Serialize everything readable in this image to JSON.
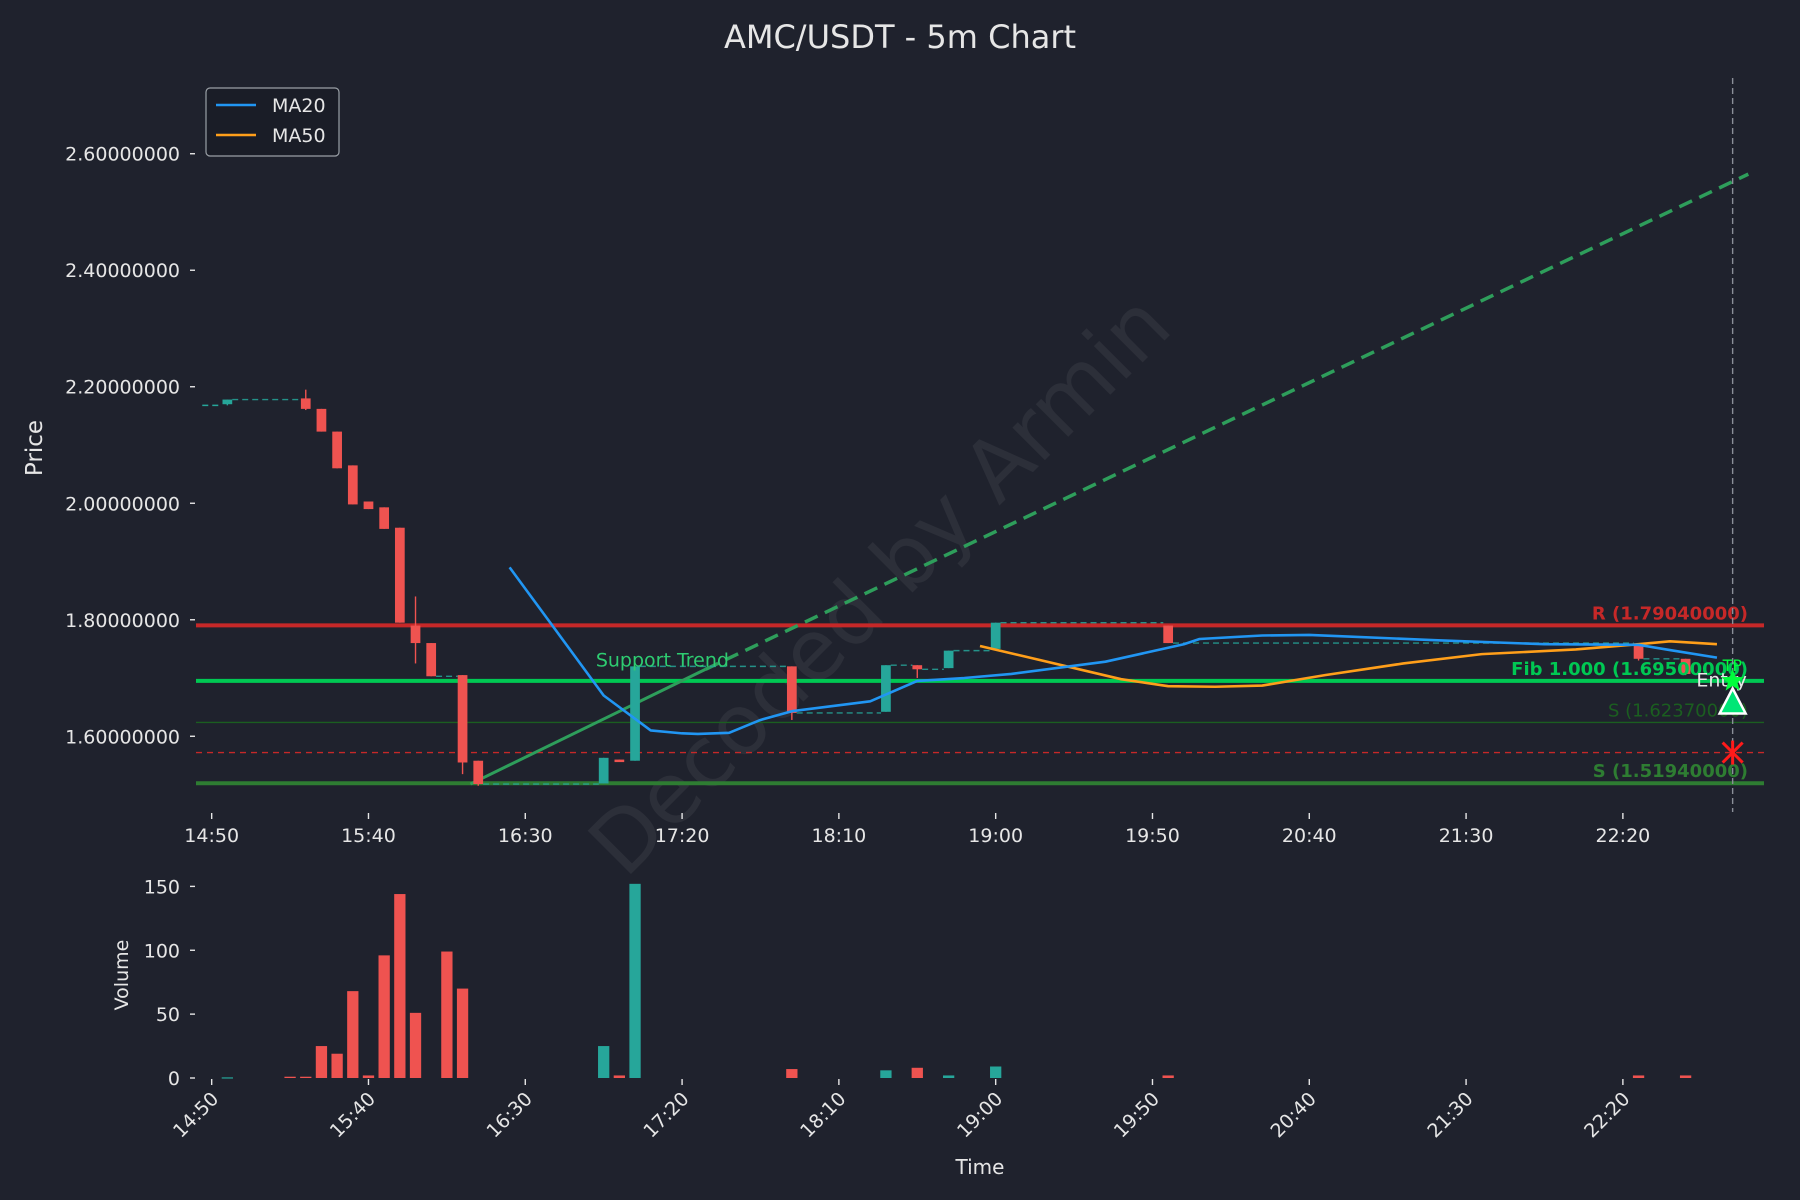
{
  "chart_data": {
    "title": "AMC/USDT - 5m Chart",
    "watermark": "Decoded by Armin",
    "colors": {
      "background": "#1f222d",
      "up": "#26a69a",
      "down": "#ef5350",
      "ma20": "#2196f3",
      "ma50": "#ff9f1a",
      "resistance": "#c62828",
      "support_strong": "#2e7d32",
      "support_weak": "#1b5e20",
      "fib": "#00c853",
      "trend": "#2e9e5b",
      "stop": "#ff1a1a"
    },
    "price_panel": {
      "type": "candlestick",
      "ylabel": "Price",
      "ylim": [
        1.47,
        2.73
      ],
      "yticks": [
        {
          "value": 1.6,
          "label": "1.60000000"
        },
        {
          "value": 1.8,
          "label": "1.80000000"
        },
        {
          "value": 2.0,
          "label": "2.00000000"
        },
        {
          "value": 2.2,
          "label": "2.20000000"
        },
        {
          "value": 2.4,
          "label": "2.40000000"
        },
        {
          "value": 2.6,
          "label": "2.60000000"
        }
      ],
      "legend": {
        "position": "top-left",
        "entries": [
          "MA20",
          "MA50"
        ]
      },
      "candles": [
        {
          "t": 1,
          "o": 2.17,
          "h": 2.178,
          "l": 2.168,
          "c": 2.178
        },
        {
          "t": 6,
          "o": 2.18,
          "h": 2.195,
          "l": 2.16,
          "c": 2.162
        },
        {
          "t": 7,
          "o": 2.162,
          "h": 2.162,
          "l": 2.123,
          "c": 2.123
        },
        {
          "t": 8,
          "o": 2.123,
          "h": 2.123,
          "l": 2.06,
          "c": 2.06
        },
        {
          "t": 9,
          "o": 2.065,
          "h": 2.065,
          "l": 1.998,
          "c": 1.998
        },
        {
          "t": 10,
          "o": 2.003,
          "h": 2.003,
          "l": 1.99,
          "c": 1.99
        },
        {
          "t": 11,
          "o": 1.993,
          "h": 1.993,
          "l": 1.956,
          "c": 1.956
        },
        {
          "t": 12,
          "o": 1.958,
          "h": 1.958,
          "l": 1.795,
          "c": 1.795
        },
        {
          "t": 13,
          "o": 1.79,
          "h": 1.84,
          "l": 1.725,
          "c": 1.76
        },
        {
          "t": 14,
          "o": 1.76,
          "h": 1.76,
          "l": 1.703,
          "c": 1.703
        },
        {
          "t": 16,
          "o": 1.705,
          "h": 1.705,
          "l": 1.535,
          "c": 1.555
        },
        {
          "t": 17,
          "o": 1.558,
          "h": 1.558,
          "l": 1.515,
          "c": 1.518
        },
        {
          "t": 25,
          "o": 1.519,
          "h": 1.563,
          "l": 1.519,
          "c": 1.563
        },
        {
          "t": 26,
          "o": 1.56,
          "h": 1.56,
          "l": 1.556,
          "c": 1.558
        },
        {
          "t": 27,
          "o": 1.558,
          "h": 1.72,
          "l": 1.558,
          "c": 1.72
        },
        {
          "t": 37,
          "o": 1.72,
          "h": 1.72,
          "l": 1.628,
          "c": 1.64
        },
        {
          "t": 43,
          "o": 1.642,
          "h": 1.722,
          "l": 1.642,
          "c": 1.722
        },
        {
          "t": 45,
          "o": 1.722,
          "h": 1.722,
          "l": 1.7,
          "c": 1.715
        },
        {
          "t": 47,
          "o": 1.717,
          "h": 1.747,
          "l": 1.717,
          "c": 1.747
        },
        {
          "t": 50,
          "o": 1.75,
          "h": 1.795,
          "l": 1.75,
          "c": 1.795
        },
        {
          "t": 61,
          "o": 1.79,
          "h": 1.79,
          "l": 1.76,
          "c": 1.76
        },
        {
          "t": 91,
          "o": 1.755,
          "h": 1.755,
          "l": 1.73,
          "c": 1.733
        },
        {
          "t": 94,
          "o": 1.733,
          "h": 1.733,
          "l": 1.705,
          "c": 1.707
        }
      ],
      "ma20": {
        "x": [
          19,
          22,
          25,
          26,
          28,
          30,
          31,
          33,
          35,
          37,
          42,
          45,
          48,
          51,
          57,
          62,
          63,
          67,
          70,
          78,
          85,
          91,
          93,
          96
        ],
        "y": [
          1.89,
          1.78,
          1.67,
          1.65,
          1.61,
          1.605,
          1.604,
          1.606,
          1.628,
          1.643,
          1.66,
          1.695,
          1.7,
          1.707,
          1.728,
          1.758,
          1.767,
          1.773,
          1.774,
          1.765,
          1.758,
          1.757,
          1.748,
          1.735
        ]
      },
      "ma50": {
        "x": [
          49,
          52,
          58,
          61,
          64,
          67,
          71,
          76,
          81,
          87,
          91,
          93,
          96
        ],
        "y": [
          1.755,
          1.736,
          1.698,
          1.686,
          1.685,
          1.687,
          1.705,
          1.725,
          1.741,
          1.749,
          1.758,
          1.763,
          1.758
        ]
      },
      "support_trend": {
        "label": "Support Trend",
        "solid": [
          [
            16.5,
            1.518
          ],
          [
            31.5,
            1.715
          ]
        ],
        "dashed": [
          [
            31.5,
            1.715
          ],
          [
            98,
            2.565
          ]
        ]
      },
      "hlines": [
        {
          "name": "resistance",
          "y": 1.7904,
          "label": "R (1.79040000)",
          "style": "solid",
          "bold": true
        },
        {
          "name": "fib",
          "y": 1.695,
          "label": "Fib 1.000 (1.69500000)",
          "style": "solid",
          "bold": true
        },
        {
          "name": "support-weak",
          "y": 1.6237,
          "label": "S (1.62370000)",
          "style": "solid",
          "bold": false
        },
        {
          "name": "stop-level",
          "y": 1.572,
          "label": "",
          "style": "dashed",
          "bold": false
        },
        {
          "name": "support-strong",
          "y": 1.5194,
          "label": "S (1.51940000)",
          "style": "solid",
          "bold": true
        }
      ],
      "markers": {
        "entry_label": "Entry",
        "tp_label": "TP",
        "entry_price": 1.658,
        "tp_price": 1.695,
        "stop_price": 1.572,
        "x": 97
      }
    },
    "volume_panel": {
      "type": "bar",
      "ylabel": "Volume",
      "ylim": [
        0,
        155
      ],
      "yticks": [
        0,
        50,
        100,
        150
      ],
      "bars": [
        {
          "t": 1,
          "v": 0.5,
          "dir": "up"
        },
        {
          "t": 5,
          "v": 1,
          "dir": "down"
        },
        {
          "t": 6,
          "v": 1,
          "dir": "down"
        },
        {
          "t": 7,
          "v": 25,
          "dir": "down"
        },
        {
          "t": 8,
          "v": 19,
          "dir": "down"
        },
        {
          "t": 9,
          "v": 68,
          "dir": "down"
        },
        {
          "t": 10,
          "v": 2,
          "dir": "down"
        },
        {
          "t": 11,
          "v": 96,
          "dir": "down"
        },
        {
          "t": 12,
          "v": 144,
          "dir": "down"
        },
        {
          "t": 13,
          "v": 51,
          "dir": "down"
        },
        {
          "t": 15,
          "v": 99,
          "dir": "down"
        },
        {
          "t": 16,
          "v": 70,
          "dir": "down"
        },
        {
          "t": 25,
          "v": 25,
          "dir": "up"
        },
        {
          "t": 26,
          "v": 2,
          "dir": "down"
        },
        {
          "t": 27,
          "v": 152,
          "dir": "up"
        },
        {
          "t": 37,
          "v": 7,
          "dir": "down"
        },
        {
          "t": 43,
          "v": 6,
          "dir": "up"
        },
        {
          "t": 45,
          "v": 8,
          "dir": "down"
        },
        {
          "t": 47,
          "v": 2,
          "dir": "up"
        },
        {
          "t": 50,
          "v": 9,
          "dir": "up"
        },
        {
          "t": 61,
          "v": 2,
          "dir": "down"
        },
        {
          "t": 91,
          "v": 2,
          "dir": "down"
        },
        {
          "t": 94,
          "v": 2,
          "dir": "down"
        }
      ]
    },
    "x_axis": {
      "xlabel": "Time",
      "xlim": [
        -1,
        99
      ],
      "ticks": [
        {
          "t": 0,
          "label": "14:50"
        },
        {
          "t": 10,
          "label": "15:40"
        },
        {
          "t": 20,
          "label": "16:30"
        },
        {
          "t": 30,
          "label": "17:20"
        },
        {
          "t": 40,
          "label": "18:10"
        },
        {
          "t": 50,
          "label": "19:00"
        },
        {
          "t": 60,
          "label": "19:50"
        },
        {
          "t": 70,
          "label": "20:40"
        },
        {
          "t": 80,
          "label": "21:30"
        },
        {
          "t": 90,
          "label": "22:20"
        }
      ]
    }
  }
}
